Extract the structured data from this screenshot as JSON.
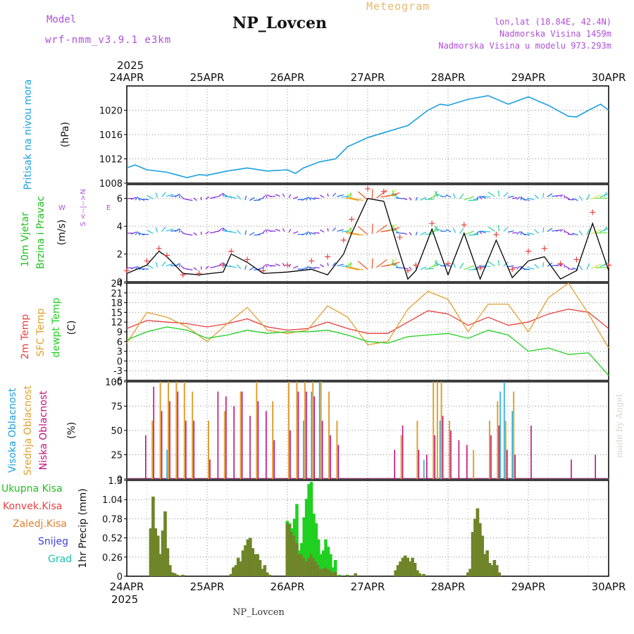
{
  "header": {
    "model_label": "Model",
    "model_name": "wrf-nmm_v3.9.1  e3km",
    "station": "NP_Lovcen",
    "title": "Meteogram",
    "lonlat": "lon,lat (18.84E, 42.4N)",
    "elevation": "Nadmorska Visina 1459m",
    "model_elevation": "Nadmorska Visina u modelu 973.293m"
  },
  "footer_station": "NP_Lovcen",
  "watermark": "made by Angel",
  "colors": {
    "pressure": "#1aa0e0",
    "frame": "#000000",
    "grid": "#888888",
    "temp2m": "#e84040",
    "sfc": "#e0a030",
    "dewpt": "#20d020",
    "high_cloud": "#20b0e0",
    "mid_cloud": "#e0a030",
    "low_cloud": "#c0107c",
    "precip_total": "#20d020",
    "precip_conv": "#e84040",
    "wind_speed_line": "#000000",
    "gust_marks": "#e84040",
    "label_purple": "#b04fd8"
  },
  "chart_data": {
    "type": "meteogram",
    "x_axis": {
      "year": "2025",
      "days": [
        "24APR",
        "25APR",
        "26APR",
        "27APR",
        "28APR",
        "29APR",
        "30APR"
      ]
    },
    "panels": [
      {
        "id": "pressure",
        "type": "line",
        "ylabel": [
          "Pritisak na nivou mora",
          "(hPa)"
        ],
        "ylim": [
          1008,
          1024
        ],
        "yticks": [
          "1008",
          "1012",
          "1016",
          "1020"
        ],
        "x": [
          0,
          0.1,
          0.25,
          0.5,
          0.75,
          0.9,
          1.0,
          1.25,
          1.5,
          1.75,
          2.0,
          2.1,
          2.2,
          2.4,
          2.6,
          2.75,
          3.0,
          3.25,
          3.5,
          3.75,
          3.9,
          4.0,
          4.25,
          4.5,
          4.75,
          5.0,
          5.25,
          5.5,
          5.6,
          5.75,
          5.9,
          6.0
        ],
        "values": [
          1010.5,
          1011.0,
          1010.2,
          1009.8,
          1008.9,
          1009.4,
          1009.3,
          1010.0,
          1010.5,
          1010.0,
          1010.2,
          1009.6,
          1010.5,
          1011.5,
          1012.0,
          1014.0,
          1015.5,
          1016.5,
          1017.5,
          1020.0,
          1021.0,
          1020.8,
          1021.8,
          1022.4,
          1021.0,
          1022.2,
          1020.8,
          1019.0,
          1018.9,
          1020.0,
          1021.0,
          1020.0
        ]
      },
      {
        "id": "wind",
        "type": "line",
        "ylabel": [
          "10m Vjetar",
          "Brzina i Pravac",
          "(m/s)"
        ],
        "direction_key": [
          "N",
          "<--|-->",
          "W",
          "E",
          "S"
        ],
        "ylim": [
          0,
          7
        ],
        "yticks": [
          "0",
          "2",
          "4",
          "6"
        ],
        "arrow_rows": [
          1,
          3.5,
          6
        ],
        "x": [
          0,
          0.25,
          0.4,
          0.5,
          0.7,
          0.9,
          1.2,
          1.3,
          1.5,
          1.7,
          2.0,
          2.3,
          2.5,
          2.7,
          2.8,
          3.0,
          3.2,
          3.4,
          3.5,
          3.6,
          3.8,
          4.0,
          4.2,
          4.4,
          4.6,
          4.8,
          5.0,
          5.2,
          5.4,
          5.6,
          5.8,
          6.0
        ],
        "values": [
          0.6,
          1.2,
          2.2,
          1.8,
          0.6,
          0.5,
          0.7,
          2.0,
          1.4,
          0.6,
          0.7,
          0.9,
          0.5,
          2.0,
          3.5,
          6.0,
          5.8,
          2.0,
          0.2,
          0.8,
          3.8,
          0.5,
          3.5,
          0.2,
          3.0,
          0.3,
          1.5,
          1.8,
          0.2,
          0.8,
          4.2,
          0.8
        ],
        "gusts": [
          0.8,
          1.5,
          2.4,
          1.9,
          0.5,
          0.6,
          1.2,
          2.2,
          1.6,
          0.8,
          1.2,
          1.5,
          1.8,
          3.0,
          4.5,
          6.7,
          6.5,
          3.2,
          0.8,
          1.2,
          4.2,
          1.3,
          4.1,
          1.0,
          3.4,
          0.9,
          2.2,
          2.4,
          1.3,
          1.6,
          5.0,
          1.2
        ]
      },
      {
        "id": "temperature",
        "type": "line",
        "ylabel": [
          "2m Temp",
          "SFC Temp",
          "dewpt Temp",
          "(C)"
        ],
        "ylim": [
          -6,
          24
        ],
        "yticks": [
          "-6",
          "-3",
          "0",
          "3",
          "6",
          "9",
          "12",
          "15",
          "18",
          "21",
          "24"
        ],
        "x": [
          0,
          0.25,
          0.5,
          0.75,
          1.0,
          1.25,
          1.5,
          1.75,
          2.0,
          2.25,
          2.5,
          2.75,
          3.0,
          3.25,
          3.5,
          3.75,
          4.0,
          4.25,
          4.5,
          4.75,
          5.0,
          5.25,
          5.5,
          5.75,
          6.0
        ],
        "series": [
          {
            "name": "2m Temp",
            "values": [
              10.0,
              12.5,
              12.0,
              11.5,
              10.5,
              11.5,
              13.0,
              10.5,
              9.5,
              10.0,
              12.0,
              10.0,
              8.5,
              8.5,
              12.0,
              15.5,
              14.5,
              11.0,
              13.5,
              11.0,
              12.0,
              14.5,
              16.0,
              15.0,
              10.0
            ]
          },
          {
            "name": "SFC Temp",
            "values": [
              5.5,
              15.0,
              13.5,
              10.5,
              6.0,
              11.5,
              16.5,
              9.5,
              8.5,
              9.5,
              17.0,
              13.5,
              5.0,
              6.0,
              16.0,
              21.5,
              19.0,
              9.0,
              17.5,
              17.5,
              9.0,
              19.5,
              24.0,
              14.5,
              4.0
            ]
          },
          {
            "name": "dewpt Temp",
            "values": [
              6.5,
              9.0,
              10.5,
              9.5,
              7.0,
              8.0,
              9.5,
              8.5,
              9.0,
              9.0,
              9.5,
              8.0,
              6.0,
              5.5,
              7.5,
              8.0,
              8.5,
              7.0,
              9.5,
              8.0,
              3.0,
              4.0,
              2.0,
              2.5,
              -4.5
            ]
          }
        ]
      },
      {
        "id": "cloud",
        "type": "bar",
        "ylabel": [
          "Visoka Oblacnost",
          "Srednja Oblacnost",
          "Niska Oblacnost",
          "(%)"
        ],
        "ylim": [
          0,
          100
        ],
        "yticks": [
          "0",
          "25",
          "50",
          "75",
          "100"
        ],
        "series": [
          {
            "name": "Visoka Oblacnost",
            "x": [
              0.5,
              2.2,
              2.3,
              2.4,
              3.7,
              3.9,
              4.65,
              4.7,
              4.8
            ],
            "values": [
              30,
              60,
              90,
              100,
              20,
              60,
              90,
              100,
              70
            ]
          },
          {
            "name": "Srednja Oblacnost",
            "x": [
              0.3,
              0.4,
              0.5,
              0.6,
              0.7,
              0.8,
              1.0,
              1.2,
              1.4,
              1.6,
              1.8,
              2.0,
              2.1,
              2.2,
              2.3,
              2.4,
              2.5,
              2.6,
              3.4,
              3.6,
              3.8,
              3.85,
              3.9,
              4.0,
              4.3,
              4.5,
              4.6,
              4.7,
              4.8
            ],
            "values": [
              60,
              100,
              100,
              100,
              100,
              90,
              60,
              70,
              90,
              100,
              80,
              100,
              100,
              100,
              100,
              100,
              90,
              60,
              45,
              60,
              100,
              100,
              100,
              60,
              30,
              60,
              80,
              60,
              90
            ]
          },
          {
            "name": "Niska Oblacnost",
            "x": [
              0.2,
              0.3,
              0.4,
              0.5,
              0.6,
              0.7,
              0.8,
              1.0,
              1.1,
              1.2,
              1.3,
              1.4,
              1.5,
              1.6,
              1.7,
              1.8,
              2.0,
              2.1,
              2.2,
              2.3,
              2.4,
              2.5,
              2.6,
              3.3,
              3.4,
              3.6,
              3.7,
              3.8,
              3.9,
              4.0,
              4.1,
              4.2,
              4.5,
              4.6,
              4.7,
              4.8,
              5.0,
              5.5,
              5.8
            ],
            "values": [
              45,
              95,
              70,
              80,
              90,
              60,
              60,
              20,
              90,
              85,
              75,
              90,
              65,
              80,
              70,
              40,
              50,
              90,
              90,
              85,
              60,
              45,
              35,
              30,
              55,
              30,
              25,
              45,
              65,
              50,
              40,
              35,
              45,
              55,
              30,
              25,
              55,
              20,
              25
            ]
          }
        ]
      },
      {
        "id": "precip",
        "type": "bar",
        "ylabel": [
          "1hr Precip (mm)"
        ],
        "legend": [
          "Ukupna Kisa",
          "Konvek.Kisa",
          "Zaledj.Kisa",
          "Snijeg",
          "Grad"
        ],
        "ylim": [
          0,
          1.3
        ],
        "yticks": [
          "0",
          "0.26",
          "0.52",
          "0.78",
          "1.04",
          "1.3"
        ],
        "x": [
          0.3,
          0.33,
          0.36,
          0.39,
          0.42,
          0.45,
          0.48,
          0.51,
          0.54,
          0.57,
          0.6,
          0.63,
          0.66,
          0.7,
          1.3,
          1.33,
          1.36,
          1.39,
          1.42,
          1.45,
          1.48,
          1.51,
          1.54,
          1.57,
          1.6,
          1.63,
          1.66,
          1.69,
          1.72,
          1.75,
          1.78,
          2.0,
          2.03,
          2.06,
          2.09,
          2.12,
          2.15,
          2.18,
          2.21,
          2.24,
          2.27,
          2.3,
          2.33,
          2.36,
          2.39,
          2.42,
          2.45,
          2.48,
          2.51,
          2.54,
          2.57,
          2.6,
          2.65,
          2.75,
          2.85,
          3.35,
          3.38,
          3.41,
          3.44,
          3.47,
          3.5,
          3.53,
          3.56,
          3.59,
          3.62,
          3.65,
          3.7,
          4.25,
          4.28,
          4.31,
          4.34,
          4.37,
          4.4,
          4.43,
          4.46,
          4.49,
          4.52,
          4.55,
          4.58,
          4.61,
          4.64
        ],
        "series": [
          {
            "name": "Ukupna Kisa",
            "values": [
              0.65,
              1.08,
              0.65,
              0.55,
              0.3,
              0.62,
              0.88,
              0.38,
              0.15,
              0.05,
              0.04,
              0.02,
              0.01,
              0.02,
              0.03,
              0.12,
              0.15,
              0.25,
              0.2,
              0.35,
              0.42,
              0.5,
              0.52,
              0.38,
              0.3,
              0.3,
              0.22,
              0.1,
              0.15,
              0.05,
              0.02,
              0.75,
              0.72,
              0.65,
              0.78,
              0.98,
              0.35,
              0.45,
              0.8,
              1.05,
              1.25,
              1.28,
              0.85,
              0.72,
              0.5,
              0.3,
              0.35,
              0.5,
              0.4,
              0.3,
              0.12,
              0.22,
              0.02,
              0.02,
              0.04,
              0.08,
              0.15,
              0.2,
              0.25,
              0.28,
              0.25,
              0.2,
              0.25,
              0.18,
              0.08,
              0.04,
              0.03,
              0.05,
              0.1,
              0.6,
              0.78,
              0.92,
              0.72,
              0.55,
              0.3,
              0.35,
              0.18,
              0.15,
              0.22,
              0.15,
              0.05
            ]
          },
          {
            "name": "Konvek.Kisa",
            "values": [
              0.65,
              1.08,
              0.65,
              0.55,
              0.3,
              0.62,
              0.88,
              0.38,
              0.15,
              0.05,
              0.04,
              0.02,
              0.01,
              0.02,
              0.03,
              0.12,
              0.15,
              0.25,
              0.2,
              0.35,
              0.42,
              0.5,
              0.52,
              0.38,
              0.3,
              0.3,
              0.22,
              0.1,
              0.15,
              0.05,
              0.02,
              0.72,
              0.7,
              0.6,
              0.55,
              0.45,
              0.3,
              0.3,
              0.25,
              0.2,
              0.25,
              0.3,
              0.25,
              0.2,
              0.15,
              0.1,
              0.1,
              0.12,
              0.1,
              0.08,
              0.05,
              0.06,
              0.01,
              0.02,
              0.04,
              0.08,
              0.15,
              0.2,
              0.25,
              0.28,
              0.25,
              0.2,
              0.25,
              0.18,
              0.08,
              0.04,
              0.03,
              0.05,
              0.1,
              0.6,
              0.78,
              0.92,
              0.72,
              0.55,
              0.3,
              0.35,
              0.18,
              0.15,
              0.22,
              0.15,
              0.05
            ]
          }
        ]
      }
    ]
  }
}
